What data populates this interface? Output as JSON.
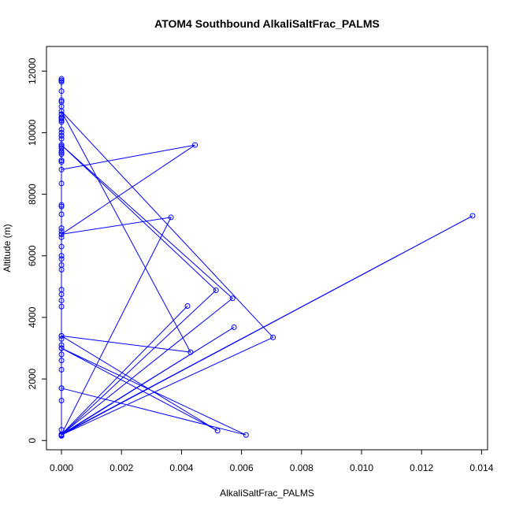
{
  "chart_data": {
    "type": "line",
    "title": "ATOM4 Southbound AlkaliSaltFrac_PALMS",
    "xlabel": "AlkaliSaltFrac_PALMS",
    "ylabel": "Altitude (m)",
    "xlim": [
      -0.0005,
      0.0142
    ],
    "ylim": [
      -300,
      12800
    ],
    "x_ticks": [
      0.0,
      0.002,
      0.004,
      0.006,
      0.008,
      0.01,
      0.012,
      0.014
    ],
    "x_tick_labels": [
      "0.000",
      "0.002",
      "0.004",
      "0.006",
      "0.008",
      "0.010",
      "0.012",
      "0.014"
    ],
    "y_ticks": [
      0,
      2000,
      4000,
      6000,
      8000,
      10000,
      12000
    ],
    "y_tick_labels": [
      "0",
      "2000",
      "4000",
      "6000",
      "8000",
      "10000",
      "12000"
    ],
    "series_color": "#0000ff",
    "grid": false,
    "markers": "open-circle",
    "series": [
      {
        "x": [
          0,
          0,
          0,
          0,
          0,
          0,
          0,
          0,
          0,
          0,
          0,
          0,
          0,
          0,
          0,
          0,
          0,
          0,
          0,
          0,
          0,
          0,
          0,
          0,
          0,
          0,
          0,
          0,
          0,
          0,
          0,
          0,
          0,
          0,
          0,
          0,
          0,
          0,
          0,
          0,
          0,
          0,
          0,
          0,
          0,
          0,
          0,
          0,
          0,
          0,
          0,
          0,
          0,
          0,
          0,
          0,
          0,
          0,
          0,
          0,
          0.00445,
          0,
          0.00365,
          0,
          0.0137,
          0,
          0.00515,
          0,
          0.0057,
          0,
          0.0042,
          0,
          0.00575,
          0,
          0.00705,
          0,
          0.0043,
          0,
          0.0052,
          0,
          0.00615,
          0
        ],
        "y": [
          150,
          180,
          200,
          350,
          1300,
          1700,
          2300,
          2600,
          2800,
          3000,
          3100,
          3300,
          3400,
          4350,
          4550,
          4750,
          4900,
          5550,
          5700,
          5900,
          6000,
          6300,
          6600,
          6700,
          6800,
          6900,
          7350,
          7600,
          7650,
          8350,
          9050,
          9100,
          9300,
          9350,
          9500,
          9550,
          9600,
          9800,
          9900,
          10000,
          10100,
          10350,
          10450,
          10500,
          10600,
          10850,
          11050,
          11350,
          11650,
          11700,
          11750,
          11700,
          11000,
          10600,
          10500,
          10400,
          9900,
          9400,
          9100,
          8800,
          9600,
          6700,
          7250,
          200,
          7300,
          180,
          4880,
          9600,
          4620,
          200,
          4370,
          200,
          3680,
          180,
          3350,
          10700,
          2870,
          3400,
          320,
          3000,
          180,
          1700
        ]
      }
    ]
  }
}
